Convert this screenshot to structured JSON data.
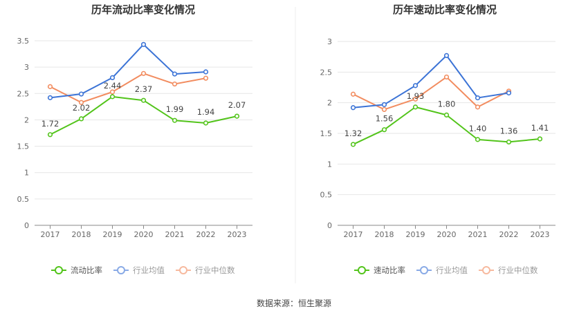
{
  "source_text": "数据来源：恒生聚源",
  "colors": {
    "current": "#52c41a",
    "avg": "#3b73d6",
    "median": "#f28c5f"
  },
  "chart_data": [
    {
      "type": "line",
      "title": "历年流动比率变化情况",
      "categories": [
        "2017",
        "2018",
        "2019",
        "2020",
        "2021",
        "2022",
        "2023"
      ],
      "ylim": [
        0,
        3.5
      ],
      "yticks": [
        "0",
        "0.5",
        "1",
        "1.5",
        "2",
        "2.5",
        "3",
        "3.5"
      ],
      "grid": true,
      "legend_position": "bottom",
      "series": [
        {
          "key": "current",
          "name": "流动比率",
          "values": [
            1.72,
            2.02,
            2.44,
            2.37,
            1.99,
            1.94,
            2.07
          ],
          "labels": [
            "1.72",
            "2.02",
            "2.44",
            "2.37",
            "1.99",
            "1.94",
            "2.07"
          ]
        },
        {
          "key": "avg",
          "name": "行业均值",
          "values": [
            2.42,
            2.49,
            2.8,
            3.43,
            2.87,
            2.91,
            null
          ]
        },
        {
          "key": "median",
          "name": "行业中位数",
          "values": [
            2.63,
            2.33,
            2.53,
            2.88,
            2.68,
            2.79,
            null
          ]
        }
      ]
    },
    {
      "type": "line",
      "title": "历年速动比率变化情况",
      "categories": [
        "2017",
        "2018",
        "2019",
        "2020",
        "2021",
        "2022",
        "2023"
      ],
      "ylim": [
        0,
        3
      ],
      "yticks": [
        "0",
        "0.5",
        "1",
        "1.5",
        "2",
        "2.5",
        "3"
      ],
      "grid": true,
      "legend_position": "bottom",
      "series": [
        {
          "key": "current",
          "name": "速动比率",
          "values": [
            1.32,
            1.56,
            1.93,
            1.8,
            1.4,
            1.36,
            1.41
          ],
          "labels": [
            "1.32",
            "1.56",
            "1.93",
            "1.80",
            "1.40",
            "1.36",
            "1.41"
          ]
        },
        {
          "key": "avg",
          "name": "行业均值",
          "values": [
            1.92,
            1.97,
            2.28,
            2.77,
            2.08,
            2.16,
            null
          ]
        },
        {
          "key": "median",
          "name": "行业中位数",
          "values": [
            2.14,
            1.89,
            2.06,
            2.42,
            1.93,
            2.19,
            null
          ]
        }
      ]
    }
  ]
}
